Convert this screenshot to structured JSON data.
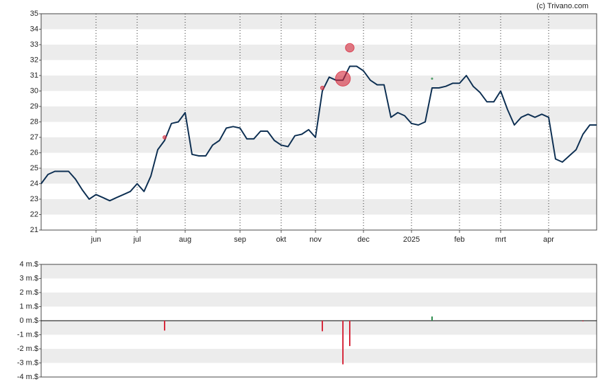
{
  "chart_data": [
    {
      "type": "line",
      "source": "(c) Trivano.com",
      "categories": [
        null,
        null,
        null,
        null,
        null,
        null,
        null,
        null,
        "jun",
        null,
        null,
        null,
        null,
        null,
        "jul",
        null,
        null,
        null,
        null,
        null,
        null,
        "aug",
        null,
        null,
        null,
        null,
        null,
        null,
        null,
        "sep",
        null,
        null,
        null,
        null,
        null,
        "okt",
        null,
        null,
        null,
        null,
        "nov",
        null,
        null,
        null,
        null,
        null,
        null,
        "dec",
        null,
        null,
        null,
        null,
        null,
        null,
        "2025",
        null,
        null,
        null,
        null,
        null,
        null,
        "feb",
        null,
        null,
        null,
        null,
        null,
        "mrt",
        null,
        null,
        null,
        null,
        null,
        null,
        "apr",
        null,
        null,
        null,
        null,
        null,
        null,
        null
      ],
      "series": [
        {
          "color": "#0d2f52",
          "values": [
            24.0,
            24.6,
            24.8,
            24.8,
            24.8,
            24.3,
            23.6,
            23.0,
            23.3,
            23.1,
            22.9,
            23.1,
            23.3,
            23.5,
            24.0,
            23.5,
            24.5,
            26.2,
            26.8,
            27.9,
            28.0,
            28.6,
            25.9,
            25.8,
            25.8,
            26.5,
            26.8,
            27.6,
            27.7,
            27.6,
            26.9,
            26.9,
            27.4,
            27.4,
            26.8,
            26.5,
            26.4,
            27.1,
            27.2,
            27.5,
            27.0,
            30.0,
            30.9,
            30.7,
            30.7,
            31.6,
            31.6,
            31.3,
            30.7,
            30.4,
            30.4,
            28.3,
            28.6,
            28.4,
            27.9,
            27.8,
            28.0,
            30.2,
            30.2,
            30.3,
            30.5,
            30.5,
            31.0,
            30.3,
            29.9,
            29.3,
            29.3,
            30.0,
            28.8,
            27.8,
            28.3,
            28.5,
            28.3,
            28.5,
            28.3,
            25.6,
            25.4,
            25.8,
            26.2,
            27.2,
            27.8,
            27.8
          ]
        },
        {
          "type": "bubble",
          "values": [
            null,
            null,
            null,
            null,
            null,
            null,
            null,
            null,
            null,
            null,
            null,
            null,
            null,
            null,
            null,
            null,
            null,
            null,
            27.0,
            null,
            null,
            null,
            null,
            null,
            null,
            null,
            null,
            null,
            null,
            null,
            null,
            null,
            null,
            null,
            null,
            null,
            null,
            null,
            null,
            null,
            null,
            30.2,
            null,
            null,
            30.8,
            32.8,
            null,
            null,
            null,
            null,
            null,
            null,
            null,
            null,
            null,
            null,
            null,
            30.8,
            null,
            null,
            null,
            null,
            null,
            null,
            null,
            null,
            null,
            null,
            null,
            null,
            null,
            null,
            null,
            null,
            null,
            null,
            null,
            null,
            null,
            null,
            null,
            null
          ]
        }
      ],
      "ylim": [
        21,
        35
      ],
      "yticks": [
        21,
        22,
        23,
        24,
        25,
        26,
        27,
        28,
        29,
        30,
        31,
        32,
        33,
        34,
        35
      ],
      "grid": "bands",
      "month_lines": true
    },
    {
      "type": "bar",
      "values": [
        null,
        null,
        null,
        null,
        null,
        null,
        null,
        null,
        null,
        null,
        null,
        null,
        null,
        null,
        null,
        null,
        null,
        null,
        -0.7,
        null,
        null,
        null,
        null,
        null,
        null,
        null,
        null,
        null,
        null,
        null,
        null,
        null,
        null,
        null,
        null,
        null,
        null,
        null,
        null,
        null,
        null,
        -0.75,
        null,
        null,
        -3.1,
        -1.8,
        null,
        null,
        null,
        null,
        null,
        null,
        null,
        null,
        null,
        null,
        null,
        0.3,
        null,
        null,
        null,
        null,
        null,
        null,
        null,
        null,
        null,
        null,
        null,
        null,
        null,
        null,
        null,
        null,
        null,
        null,
        null,
        null,
        null,
        -0.05,
        null,
        null
      ],
      "positive_color": "#2a8a4a",
      "negative_color": "#d6283b",
      "ylim": [
        -4,
        4
      ],
      "yticks": [
        {
          "value": -4,
          "label": "-4 m.$"
        },
        {
          "value": -3,
          "label": "-3 m.$"
        },
        {
          "value": -2,
          "label": "-2 m.$"
        },
        {
          "value": -1,
          "label": "-1 m.$"
        },
        {
          "value": 0,
          "label": "0 m.$"
        },
        {
          "value": 1,
          "label": "1 m.$"
        },
        {
          "value": 2,
          "label": "2 m.$"
        },
        {
          "value": 3,
          "label": "3 m.$"
        },
        {
          "value": 4,
          "label": "4 m.$"
        }
      ],
      "grid": "bands"
    }
  ]
}
